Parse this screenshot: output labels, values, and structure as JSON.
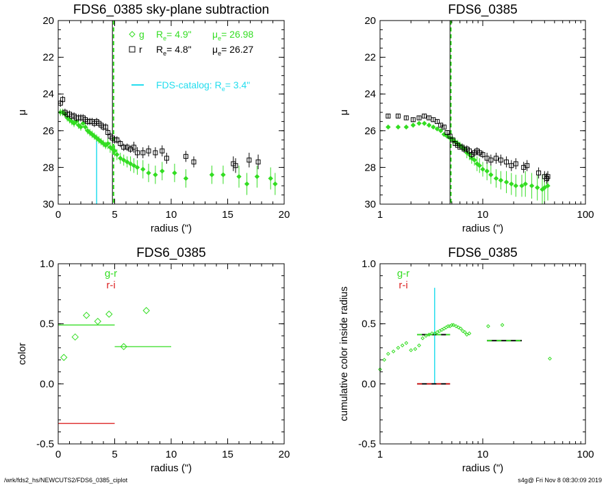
{
  "footer": {
    "left": "/wrk/fds2_hs/NEWCUTS2/FDS6_0385_ciplot",
    "right": "s4g@  Fri Nov  8 08:30:09 2019"
  },
  "colors": {
    "g": "#33dd22",
    "r": "#000000",
    "i": "#dd2222",
    "catalog": "#22ddee"
  },
  "chart_data": [
    {
      "type": "scatter",
      "title": "FDS6_0385 sky-plane subtraction",
      "xlabel": "radius (\")",
      "ylabel": "μ",
      "xscale": "linear",
      "xlim": [
        0,
        20
      ],
      "ylim": [
        30,
        20
      ],
      "x_ticks": [
        "0",
        "5",
        "10",
        "15",
        "20"
      ],
      "y_ticks": [
        "20",
        "22",
        "24",
        "26",
        "28",
        "30"
      ],
      "vlines": [
        {
          "x": 4.9,
          "color": "g",
          "style": "dashed"
        },
        {
          "x": 4.8,
          "color": "r",
          "style": "solid"
        }
      ],
      "catalog_line": {
        "x": 3.4,
        "y_top": 26.5
      },
      "legend": {
        "g": {
          "sym": "g",
          "re_label": "R",
          "re_sub": "e",
          "re_val": "=   4.9\"",
          "mu_label": "μ",
          "mu_sub": "e",
          "mu_val": "= 26.98"
        },
        "r": {
          "sym": "r",
          "re_label": "R",
          "re_sub": "e",
          "re_val": "=   4.8\"",
          "mu_label": "μ",
          "mu_sub": "e",
          "mu_val": "= 26.27"
        },
        "catalog": {
          "text": "FDS-catalog: R",
          "sub": "e",
          "val": "=   3.4\""
        }
      },
      "series": [
        {
          "name": "g",
          "x": [
            0.2,
            0.4,
            0.6,
            0.8,
            1.0,
            1.2,
            1.4,
            1.6,
            1.8,
            2.0,
            2.2,
            2.4,
            2.6,
            2.8,
            3.0,
            3.2,
            3.4,
            3.6,
            3.8,
            4.0,
            4.2,
            4.4,
            4.6,
            4.8,
            5.0,
            5.2,
            5.5,
            5.8,
            6.1,
            6.4,
            6.7,
            7.0,
            7.5,
            8.0,
            8.6,
            9.2,
            10.3,
            11.3,
            13.6,
            14.6,
            16.0,
            16.7,
            17.6,
            18.8,
            19.2
          ],
          "y": [
            25.0,
            25.0,
            25.1,
            25.3,
            25.4,
            25.5,
            25.6,
            25.5,
            25.7,
            25.8,
            25.6,
            25.8,
            26.0,
            26.1,
            26.2,
            26.3,
            26.4,
            26.5,
            26.6,
            26.7,
            26.8,
            26.7,
            26.9,
            27.0,
            27.1,
            27.3,
            27.5,
            27.6,
            27.7,
            27.8,
            27.9,
            28.0,
            28.1,
            28.3,
            28.4,
            28.2,
            28.3,
            28.6,
            28.4,
            28.4,
            28.5,
            28.9,
            28.5,
            28.6,
            28.9
          ],
          "err": [
            0.2,
            0.2,
            0.2,
            0.2,
            0.2,
            0.2,
            0.2,
            0.2,
            0.2,
            0.2,
            0.2,
            0.2,
            0.2,
            0.2,
            0.2,
            0.2,
            0.2,
            0.2,
            0.2,
            0.2,
            0.2,
            0.3,
            0.3,
            0.3,
            0.3,
            0.3,
            0.3,
            0.3,
            0.3,
            0.4,
            0.4,
            0.4,
            0.5,
            0.5,
            0.5,
            0.5,
            0.5,
            0.5,
            0.5,
            0.5,
            0.6,
            0.6,
            0.6,
            0.6,
            0.6
          ]
        },
        {
          "name": "r",
          "x": [
            0.2,
            0.4,
            0.6,
            0.8,
            1.0,
            1.2,
            1.4,
            1.6,
            1.8,
            2.0,
            2.2,
            2.4,
            2.6,
            2.8,
            3.0,
            3.2,
            3.4,
            3.6,
            3.8,
            4.0,
            4.2,
            4.4,
            4.6,
            4.8,
            5.0,
            5.2,
            5.5,
            5.8,
            6.1,
            6.4,
            6.7,
            7.0,
            7.5,
            8.0,
            8.6,
            9.2,
            9.6,
            11.3,
            12.0,
            15.5,
            15.7,
            16.9,
            17.7
          ],
          "y": [
            24.5,
            24.3,
            25.0,
            25.1,
            25.1,
            25.2,
            25.2,
            25.3,
            25.3,
            25.3,
            25.3,
            25.4,
            25.5,
            25.5,
            25.5,
            25.6,
            25.5,
            25.6,
            25.7,
            25.8,
            25.8,
            26.1,
            26.3,
            26.4,
            26.5,
            26.5,
            26.7,
            26.9,
            26.9,
            27.0,
            26.9,
            27.2,
            27.2,
            27.1,
            27.2,
            27.1,
            27.5,
            27.4,
            27.7,
            27.8,
            27.9,
            27.6,
            27.7
          ],
          "err": [
            0.2,
            0.2,
            0.2,
            0.2,
            0.2,
            0.2,
            0.2,
            0.2,
            0.2,
            0.2,
            0.2,
            0.2,
            0.2,
            0.2,
            0.2,
            0.2,
            0.2,
            0.2,
            0.2,
            0.2,
            0.2,
            0.2,
            0.2,
            0.2,
            0.2,
            0.2,
            0.2,
            0.2,
            0.2,
            0.2,
            0.3,
            0.3,
            0.3,
            0.3,
            0.3,
            0.3,
            0.3,
            0.3,
            0.3,
            0.4,
            0.4,
            0.4,
            0.4
          ]
        }
      ]
    },
    {
      "type": "scatter",
      "title": "FDS6_0385",
      "xlabel": "radius (\")",
      "ylabel": "μ",
      "xscale": "log",
      "xlim": [
        1,
        100
      ],
      "ylim": [
        30,
        20
      ],
      "x_ticks": [
        "1",
        "10",
        "100"
      ],
      "y_ticks": [
        "20",
        "22",
        "24",
        "26",
        "28",
        "30"
      ],
      "vlines": [
        {
          "x": 4.9,
          "color": "g",
          "style": "dashed"
        },
        {
          "x": 4.8,
          "color": "r",
          "style": "solid"
        }
      ],
      "series": [
        {
          "name": "g",
          "x": [
            1.2,
            1.5,
            1.8,
            2.1,
            2.4,
            2.7,
            3.0,
            3.3,
            3.6,
            3.9,
            4.2,
            4.5,
            4.8,
            5.1,
            5.4,
            5.7,
            6.0,
            6.3,
            6.6,
            7.0,
            7.4,
            7.8,
            8.3,
            8.8,
            9.3,
            10.0,
            11.0,
            12.0,
            13.5,
            15.0,
            17.0,
            19.0,
            21.0,
            24.0,
            26.0,
            30.0,
            34.0,
            38.0,
            40.0,
            43.0
          ],
          "y": [
            25.8,
            25.8,
            25.8,
            25.7,
            25.6,
            25.6,
            25.7,
            25.8,
            25.9,
            26.0,
            26.2,
            26.3,
            26.4,
            26.5,
            26.6,
            26.7,
            26.8,
            26.9,
            27.0,
            27.2,
            27.3,
            27.5,
            27.6,
            27.8,
            27.9,
            28.1,
            28.2,
            28.4,
            28.6,
            28.7,
            28.8,
            28.9,
            29.0,
            29.0,
            28.9,
            29.0,
            29.1,
            29.2,
            29.1,
            29.0
          ],
          "err": [
            0.1,
            0.1,
            0.1,
            0.1,
            0.1,
            0.1,
            0.1,
            0.1,
            0.1,
            0.1,
            0.1,
            0.1,
            0.2,
            0.2,
            0.2,
            0.2,
            0.2,
            0.2,
            0.2,
            0.3,
            0.3,
            0.3,
            0.3,
            0.4,
            0.4,
            0.4,
            0.5,
            0.5,
            0.5,
            0.5,
            0.6,
            0.6,
            0.6,
            0.6,
            0.7,
            0.7,
            0.7,
            0.8,
            0.8,
            0.8
          ]
        },
        {
          "name": "r",
          "x": [
            1.2,
            1.5,
            1.8,
            2.1,
            2.4,
            2.7,
            3.0,
            3.3,
            3.6,
            3.9,
            4.2,
            4.5,
            4.8,
            5.1,
            5.4,
            5.7,
            6.0,
            6.3,
            6.6,
            7.0,
            7.4,
            7.8,
            8.3,
            8.8,
            9.3,
            10.0,
            11.0,
            12.0,
            13.5,
            15.0,
            17.0,
            19.0,
            21.0,
            25.0,
            27.0,
            35.0,
            40.0,
            42.0,
            43.0
          ],
          "y": [
            25.2,
            25.2,
            25.3,
            25.4,
            25.3,
            25.2,
            25.3,
            25.4,
            25.5,
            25.7,
            25.8,
            26.1,
            26.3,
            26.5,
            26.7,
            26.8,
            26.9,
            26.9,
            27.0,
            27.0,
            27.1,
            27.3,
            27.2,
            27.1,
            27.2,
            27.3,
            27.5,
            27.6,
            27.5,
            27.6,
            27.7,
            27.9,
            27.8,
            28.0,
            27.9,
            28.3,
            28.5,
            28.6,
            28.5
          ],
          "err": [
            0.1,
            0.1,
            0.1,
            0.1,
            0.1,
            0.1,
            0.1,
            0.1,
            0.1,
            0.1,
            0.1,
            0.1,
            0.1,
            0.1,
            0.1,
            0.1,
            0.1,
            0.2,
            0.2,
            0.2,
            0.2,
            0.2,
            0.2,
            0.2,
            0.2,
            0.2,
            0.3,
            0.3,
            0.3,
            0.3,
            0.3,
            0.3,
            0.3,
            0.3,
            0.3,
            0.3,
            0.3,
            0.3,
            0.3
          ]
        }
      ]
    },
    {
      "type": "scatter",
      "title": "FDS6_0385",
      "xlabel": "radius (\")",
      "ylabel": "color",
      "xscale": "linear",
      "xlim": [
        0,
        20
      ],
      "ylim": [
        -0.5,
        1.0
      ],
      "x_ticks": [
        "0",
        "5",
        "10",
        "15",
        "20"
      ],
      "y_ticks": [
        "-0.5",
        "0.0",
        "0.5",
        "1.0"
      ],
      "legend": [
        {
          "label": "g-r",
          "color": "g"
        },
        {
          "label": "r-i",
          "color": "i"
        }
      ],
      "series": [
        {
          "name": "g-r",
          "x": [
            0.5,
            1.5,
            2.5,
            3.5,
            4.5,
            5.8,
            7.8
          ],
          "y": [
            0.22,
            0.39,
            0.57,
            0.52,
            0.58,
            0.31,
            0.61
          ]
        }
      ],
      "hlines": [
        {
          "x": [
            0,
            5
          ],
          "y": 0.49,
          "color": "g"
        },
        {
          "x": [
            5,
            10
          ],
          "y": 0.31,
          "color": "g"
        },
        {
          "x": [
            0,
            5
          ],
          "y": -0.33,
          "color": "i"
        }
      ]
    },
    {
      "type": "scatter",
      "title": "FDS6_0385",
      "xlabel": "radius (\")",
      "ylabel": "cumulative color inside radius",
      "xscale": "log",
      "xlim": [
        1,
        100
      ],
      "ylim": [
        -0.5,
        1.0
      ],
      "x_ticks": [
        "1",
        "10",
        "100"
      ],
      "y_ticks": [
        "-0.5",
        "0.0",
        "0.5",
        "1.0"
      ],
      "legend": [
        {
          "label": "g-r",
          "color": "g"
        },
        {
          "label": "r-i",
          "color": "i"
        }
      ],
      "catalog_line": {
        "x": 3.4,
        "y_bottom": 0.0,
        "y_top": 0.8
      },
      "series": [
        {
          "name": "g-r",
          "x": [
            1.0,
            1.1,
            1.2,
            1.35,
            1.5,
            1.65,
            1.8,
            2.0,
            2.2,
            2.4,
            2.6,
            2.8,
            3.0,
            3.2,
            3.4,
            3.6,
            3.8,
            4.0,
            4.2,
            4.4,
            4.6,
            4.8,
            5.0,
            5.2,
            5.5,
            5.8,
            6.1,
            6.4,
            6.7,
            7.0,
            7.4,
            11.3,
            15.5,
            45.0
          ],
          "y": [
            0.12,
            0.2,
            0.25,
            0.27,
            0.3,
            0.32,
            0.34,
            0.28,
            0.29,
            0.32,
            0.38,
            0.4,
            0.41,
            0.42,
            0.42,
            0.43,
            0.44,
            0.45,
            0.46,
            0.47,
            0.48,
            0.48,
            0.49,
            0.49,
            0.48,
            0.47,
            0.46,
            0.44,
            0.43,
            0.41,
            0.42,
            0.48,
            0.49,
            0.21
          ]
        }
      ],
      "hlines": [
        {
          "x": [
            2.3,
            4.8
          ],
          "y": 0.41,
          "color": "g",
          "style": "dashed"
        },
        {
          "x": [
            11,
            24
          ],
          "y": 0.36,
          "color": "g",
          "style": "dashed"
        },
        {
          "x": [
            2.3,
            4.8
          ],
          "y": 0.0,
          "color": "i",
          "style": "dashed"
        }
      ]
    }
  ]
}
